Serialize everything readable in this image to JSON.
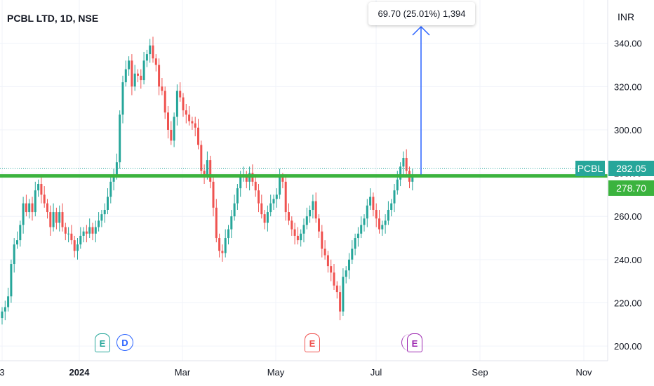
{
  "chart_data": {
    "type": "candlestick",
    "title": "PCBL LTD, 1D, NSE",
    "currency": "INR",
    "ylim": [
      194,
      346
    ],
    "y_ticks": [
      340,
      320,
      300,
      280,
      260,
      240,
      220,
      200
    ],
    "y_tick_labels": [
      "340.00",
      "320.00",
      "300.00",
      "280.00",
      "260.00",
      "240.00",
      "220.00",
      "200.00"
    ],
    "x_tick_labels": [
      "3",
      "2024",
      "Mar",
      "May",
      "Jul",
      "Sep",
      "Nov"
    ],
    "close": [
      216,
      218,
      223,
      238,
      247,
      249,
      256,
      266,
      262,
      266,
      262,
      272,
      275,
      270,
      266,
      262,
      255,
      262,
      257,
      262,
      255,
      252,
      252,
      249,
      244,
      247,
      251,
      253,
      252,
      255,
      252,
      255,
      258,
      261,
      263,
      269,
      276,
      279,
      285,
      307,
      322,
      328,
      332,
      320,
      326,
      325,
      323,
      332,
      335,
      339,
      333,
      330,
      320,
      318,
      308,
      300,
      295,
      306,
      318,
      315,
      309,
      307,
      304,
      303,
      301,
      293,
      281,
      279,
      286,
      276,
      264,
      250,
      244,
      243,
      250,
      254,
      260,
      266,
      273,
      278,
      279,
      276,
      280,
      276,
      272,
      266,
      261,
      257,
      262,
      266,
      268,
      270,
      278,
      276,
      262,
      258,
      254,
      251,
      249,
      252,
      256,
      260,
      263,
      267,
      259,
      253,
      245,
      242,
      237,
      234,
      228,
      225,
      216,
      232,
      235,
      240,
      245,
      250,
      252,
      256,
      259,
      265,
      269,
      263,
      259,
      254,
      256,
      258,
      263,
      266,
      272,
      277,
      283,
      287,
      281,
      276,
      279
    ],
    "annotation": {
      "label": "69.70 (25.01%) 1,394"
    },
    "price_tags": {
      "symbol": "PCBL",
      "last": "282.05",
      "level": "278.70"
    },
    "horizontal_line": 278.7,
    "events": [
      "E",
      "D",
      "E",
      "E"
    ],
    "colors": {
      "up": "#26a69a",
      "down": "#ef5350",
      "line": "#3bb33e",
      "arrow": "#2962ff",
      "tag_teal": "#26a69a",
      "tag_green": "#3bb33e"
    }
  }
}
